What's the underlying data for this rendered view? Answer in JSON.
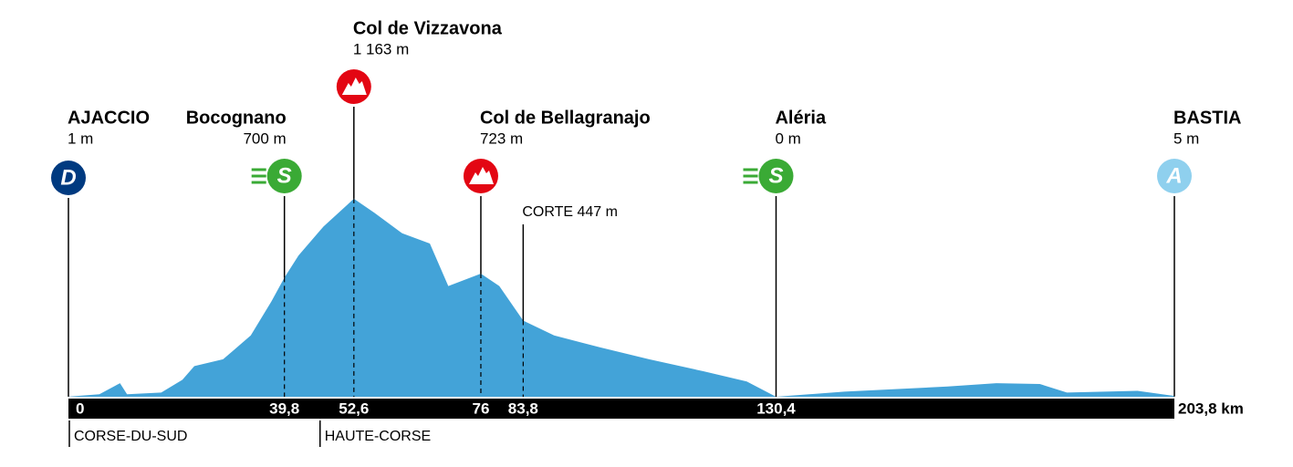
{
  "chart_data": {
    "type": "area",
    "color": "#43a3d8",
    "x": [
      0,
      5.7,
      9.5,
      10.8,
      17.1,
      21,
      23.2,
      28.5,
      33.6,
      37.4,
      39.8,
      42.4,
      47,
      52.6,
      56.4,
      61.5,
      66.6,
      70,
      76,
      79.4,
      83.8,
      89.5,
      98,
      107,
      117,
      125,
      130.4,
      143,
      162,
      171,
      179,
      184,
      197,
      203.8
    ],
    "values": [
      1,
      15,
      80,
      15,
      25,
      100,
      180,
      220,
      360,
      560,
      700,
      830,
      1000,
      1163,
      1080,
      960,
      900,
      650,
      723,
      650,
      447,
      360,
      290,
      220,
      150,
      90,
      0,
      30,
      60,
      80,
      75,
      25,
      35,
      5
    ],
    "xlim": [
      0,
      203.8
    ],
    "ylim": [
      0,
      1200
    ],
    "xticks": [
      0,
      {
        "value": 39.8,
        "label": "39,8"
      },
      {
        "value": 52.6,
        "label": "52,6"
      },
      76,
      {
        "value": 83.8,
        "label": "83,8"
      },
      {
        "value": 130.4,
        "label": "130,4"
      },
      {
        "value": 203.8,
        "label": "203,8 km"
      }
    ],
    "places": [
      {
        "name": "AJACCIO",
        "elevation": "1 m",
        "km": 0,
        "icon": "D",
        "color": "#003a80"
      },
      {
        "name": "Bocognano",
        "elevation": "700 m",
        "km": 39.8,
        "icon": "S",
        "color": "#3aaa35"
      },
      {
        "name": "Col de Vizzavona",
        "elevation": "1 163 m",
        "km": 52.6,
        "icon": null,
        "color": "#e30613"
      },
      {
        "name": "Col de Bellagranajo",
        "elevation": "723 m",
        "km": 76,
        "icon": null,
        "color": "#e30613"
      },
      {
        "name": "CORTE 447 m",
        "elevation": null,
        "km": 83.8,
        "icon": null,
        "color": null
      },
      {
        "name": "Aléria",
        "elevation": "0 m",
        "km": 130.4,
        "icon": "S",
        "color": "#3aaa35"
      },
      {
        "name": "BASTIA",
        "elevation": "5 m",
        "km": 203.8,
        "icon": "A",
        "color": "#8fd0ee"
      }
    ],
    "regions": [
      "CORSE-DU-SUD",
      "HAUTE-CORSE"
    ]
  }
}
